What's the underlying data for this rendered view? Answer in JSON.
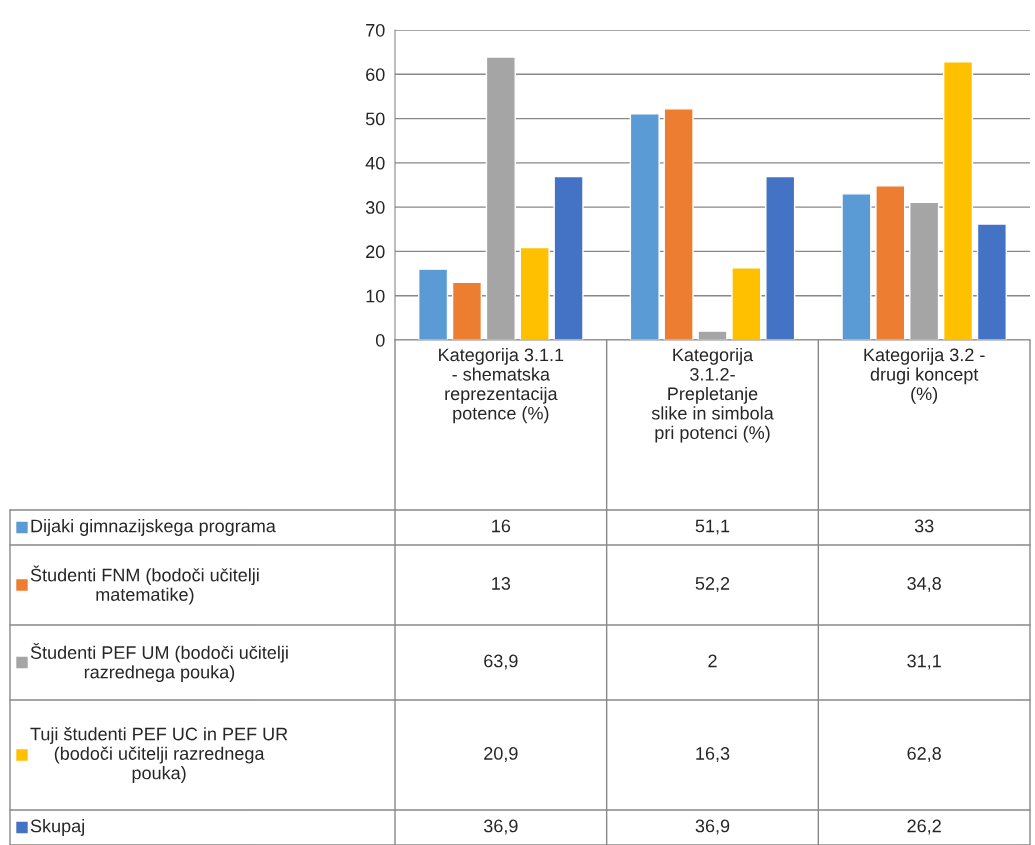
{
  "chart_data": {
    "type": "bar",
    "categories": [
      "Kategorija 3.1.1\n- shematska\nreprezentacija\npotence (%)",
      "Kategorija\n3.1.2-\nPrepletanje\nslike in simbola\npri potenci (%)",
      "Kategorija 3.2 -\ndrugi koncept\n(%)"
    ],
    "series": [
      {
        "name": "Dijaki gimnazijskega programa",
        "color": "#5b9bd5",
        "values": [
          16,
          51.1,
          33
        ],
        "value_labels": [
          "16",
          "51,1",
          "33"
        ]
      },
      {
        "name": "Študenti FNM (bodoči učitelji\nmatematike)",
        "color": "#ed7d31",
        "values": [
          13,
          52.2,
          34.8
        ],
        "value_labels": [
          "13",
          "52,2",
          "34,8"
        ]
      },
      {
        "name": "Študenti PEF UM (bodoči učitelji\nrazrednega pouka)",
        "color": "#a5a5a5",
        "values": [
          63.9,
          2,
          31.1
        ],
        "value_labels": [
          "63,9",
          "2",
          "31,1"
        ]
      },
      {
        "name": "Tuji študenti PEF UC in PEF UR\n(bodoči učitelji razrednega\npouka)",
        "color": "#ffc000",
        "values": [
          20.9,
          16.3,
          62.8
        ],
        "value_labels": [
          "20,9",
          "16,3",
          "62,8"
        ]
      },
      {
        "name": "Skupaj",
        "color": "#4472c4",
        "values": [
          36.9,
          36.9,
          26.2
        ],
        "value_labels": [
          "36,9",
          "36,9",
          "26,2"
        ]
      }
    ],
    "ylim": [
      0,
      70
    ],
    "yticks": [
      0,
      10,
      20,
      30,
      40,
      50,
      60,
      70
    ],
    "grid": "y",
    "legend": "bottom"
  }
}
